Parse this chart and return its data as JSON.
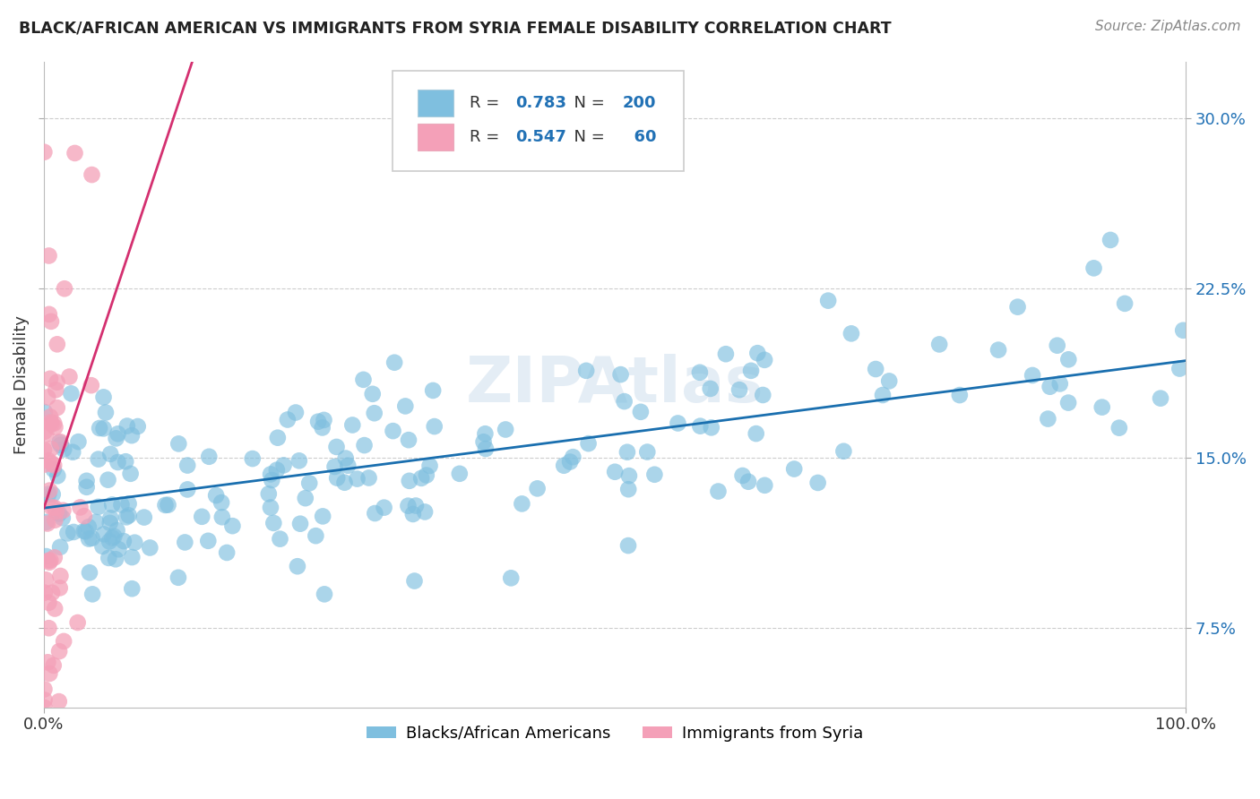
{
  "title": "BLACK/AFRICAN AMERICAN VS IMMIGRANTS FROM SYRIA FEMALE DISABILITY CORRELATION CHART",
  "source": "Source: ZipAtlas.com",
  "ylabel": "Female Disability",
  "xlabel": "",
  "xlim": [
    0.0,
    1.0
  ],
  "ylim": [
    0.04,
    0.325
  ],
  "yticks": [
    0.075,
    0.15,
    0.225,
    0.3
  ],
  "ytick_labels": [
    "7.5%",
    "15.0%",
    "22.5%",
    "30.0%"
  ],
  "xticks": [
    0.0,
    1.0
  ],
  "xtick_labels": [
    "0.0%",
    "100.0%"
  ],
  "blue_R": 0.783,
  "blue_N": 200,
  "pink_R": 0.547,
  "pink_N": 60,
  "blue_color": "#7fbfdf",
  "pink_color": "#f4a0b8",
  "blue_line_color": "#1a6faf",
  "pink_line_color": "#d43070",
  "pink_line_dash_color": "#e8a0b8",
  "legend_label_blue": "Blacks/African Americans",
  "legend_label_pink": "Immigrants from Syria",
  "watermark": "ZIPAtlas",
  "background_color": "#ffffff",
  "grid_color": "#cccccc"
}
